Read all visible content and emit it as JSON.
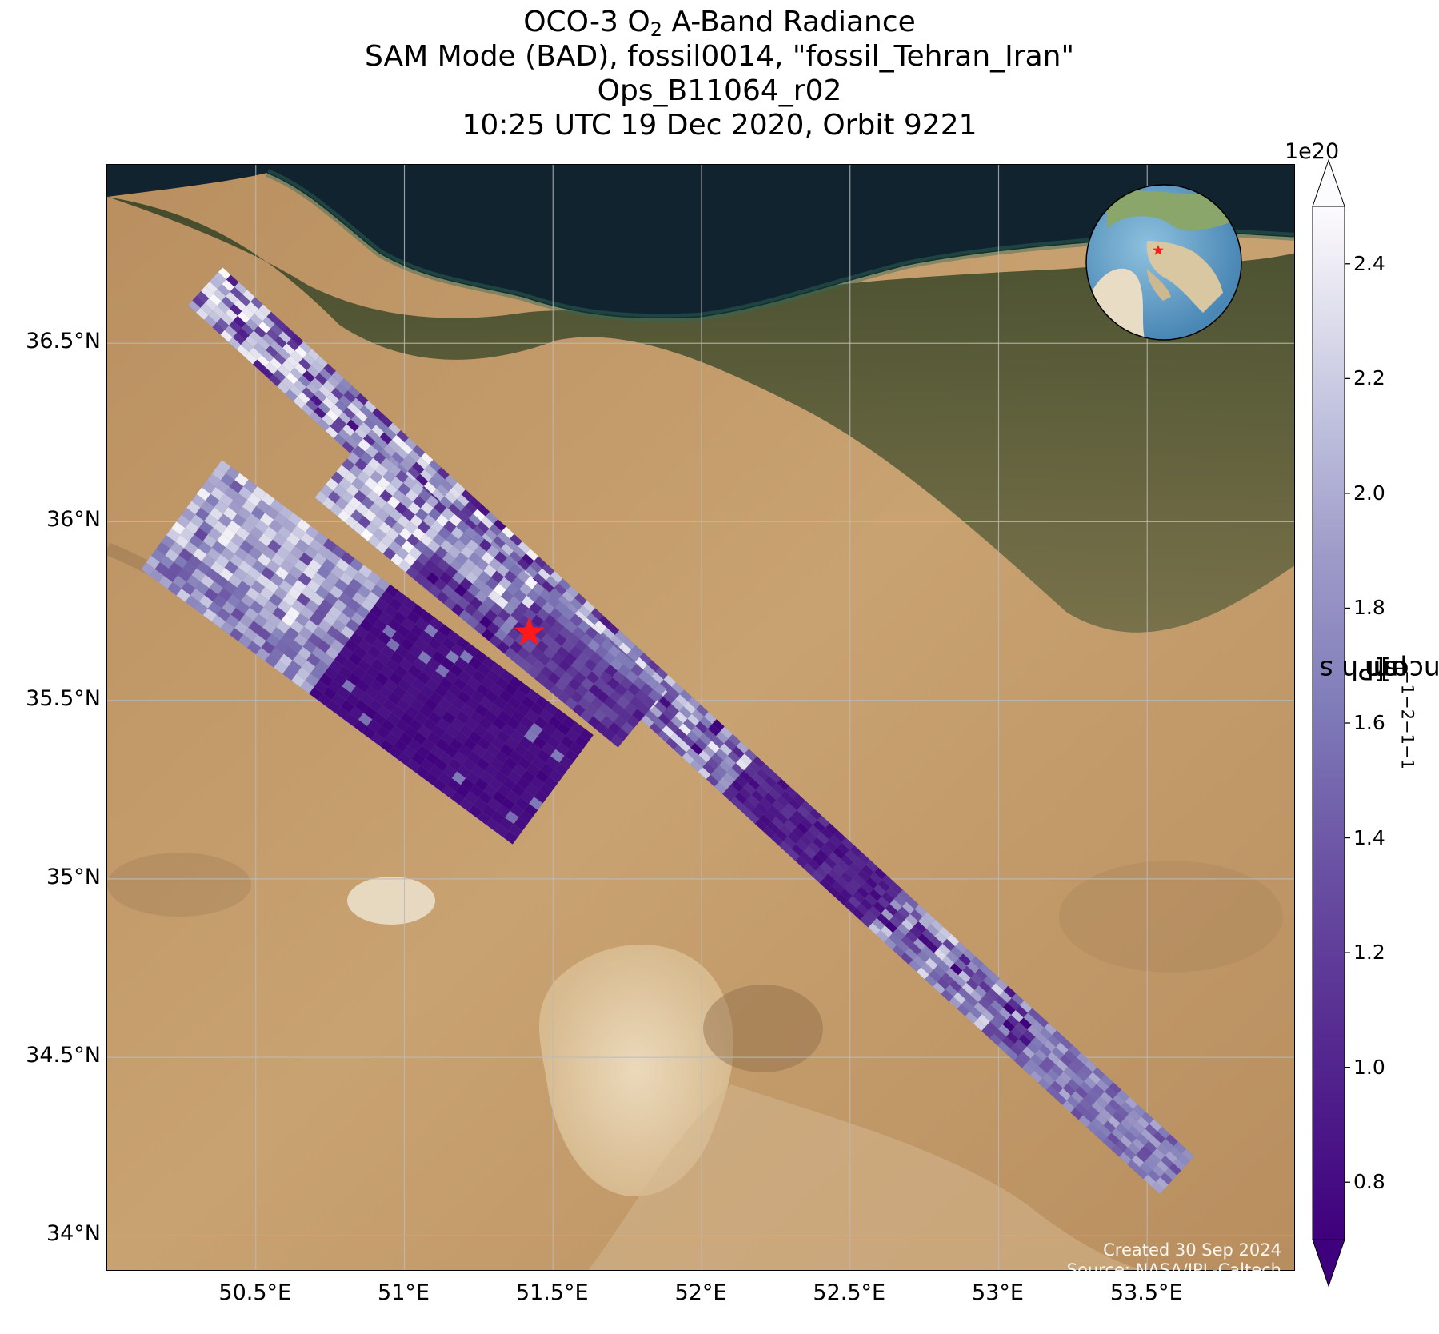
{
  "title": {
    "line1_prefix": "OCO-3 O",
    "line1_sub": "2",
    "line1_suffix": " A-Band Radiance",
    "line2": "SAM Mode (BAD), fossil0014, \"fossil_Tehran_Iran\"",
    "line3": "Ops_B11064_r02",
    "line4": "10:25 UTC 19 Dec 2020, Orbit 9221"
  },
  "map": {
    "lat_labels": [
      "36.5°N",
      "36°N",
      "35.5°N",
      "35°N",
      "34.5°N",
      "34°N"
    ],
    "lat_values": [
      36.5,
      36.0,
      35.5,
      35.0,
      34.5,
      34.0
    ],
    "lon_labels": [
      "50.5°E",
      "51°E",
      "51.5°E",
      "52°E",
      "52.5°E",
      "53°E",
      "53.5°E"
    ],
    "lon_values": [
      50.5,
      51.0,
      51.5,
      52.0,
      52.5,
      53.0,
      53.5
    ],
    "lon_range": [
      50.0,
      54.0
    ],
    "lat_range": [
      33.9,
      37.0
    ],
    "grid": true,
    "target_marker": {
      "lon": 51.42,
      "lat": 35.69,
      "color": "#ff1a1a",
      "shape": "star"
    },
    "inset_globe": {
      "centered_on": "Middle East",
      "marker_color": "#ff1a1a"
    },
    "basemap": "satellite imagery",
    "sea_color": "#10232f",
    "land_color": "#c8a06c",
    "forest_color": "#3a4a2a"
  },
  "credit": {
    "line1": "Created 30 Sep 2024",
    "line2": "Source: NASA/JPL-Caltech"
  },
  "colorbar": {
    "label_prefix": "Radiance [Ph s",
    "label_s_exp": "−1",
    "label_m": " m",
    "label_m_exp": "−2",
    "label_sr": " sr",
    "label_sr_exp": "−1",
    "label_um": "μm",
    "label_um_exp": "−1",
    "label_suffix": "]",
    "exponent": "1e20",
    "ticks": [
      "0.8",
      "1.0",
      "1.2",
      "1.4",
      "1.6",
      "1.8",
      "2.0",
      "2.2",
      "2.4"
    ],
    "tick_values": [
      0.8,
      1.0,
      1.2,
      1.4,
      1.6,
      1.8,
      2.0,
      2.2,
      2.4
    ],
    "range": [
      0.7,
      2.5
    ],
    "extend": "both",
    "colormap": "Purples_r",
    "color_low": "#3f007d",
    "color_mid": "#8c86c0",
    "color_high": "#fcfbfd"
  },
  "swaths": [
    {
      "name": "northern swath",
      "start": {
        "lon": 50.33,
        "lat": 36.66
      },
      "end": {
        "lon": 53.6,
        "lat": 34.17
      },
      "dominant": "mixed light to dark"
    },
    {
      "name": "middle swath",
      "start": {
        "lon": 50.78,
        "lat": 36.15
      },
      "end": {
        "lon": 51.8,
        "lat": 35.45
      },
      "dominant": "light in north, dark in south"
    },
    {
      "name": "western swath",
      "start": {
        "lon": 50.25,
        "lat": 36.02
      },
      "end": {
        "lon": 51.5,
        "lat": 35.25
      },
      "dominant": "light in west, dark in east"
    }
  ]
}
